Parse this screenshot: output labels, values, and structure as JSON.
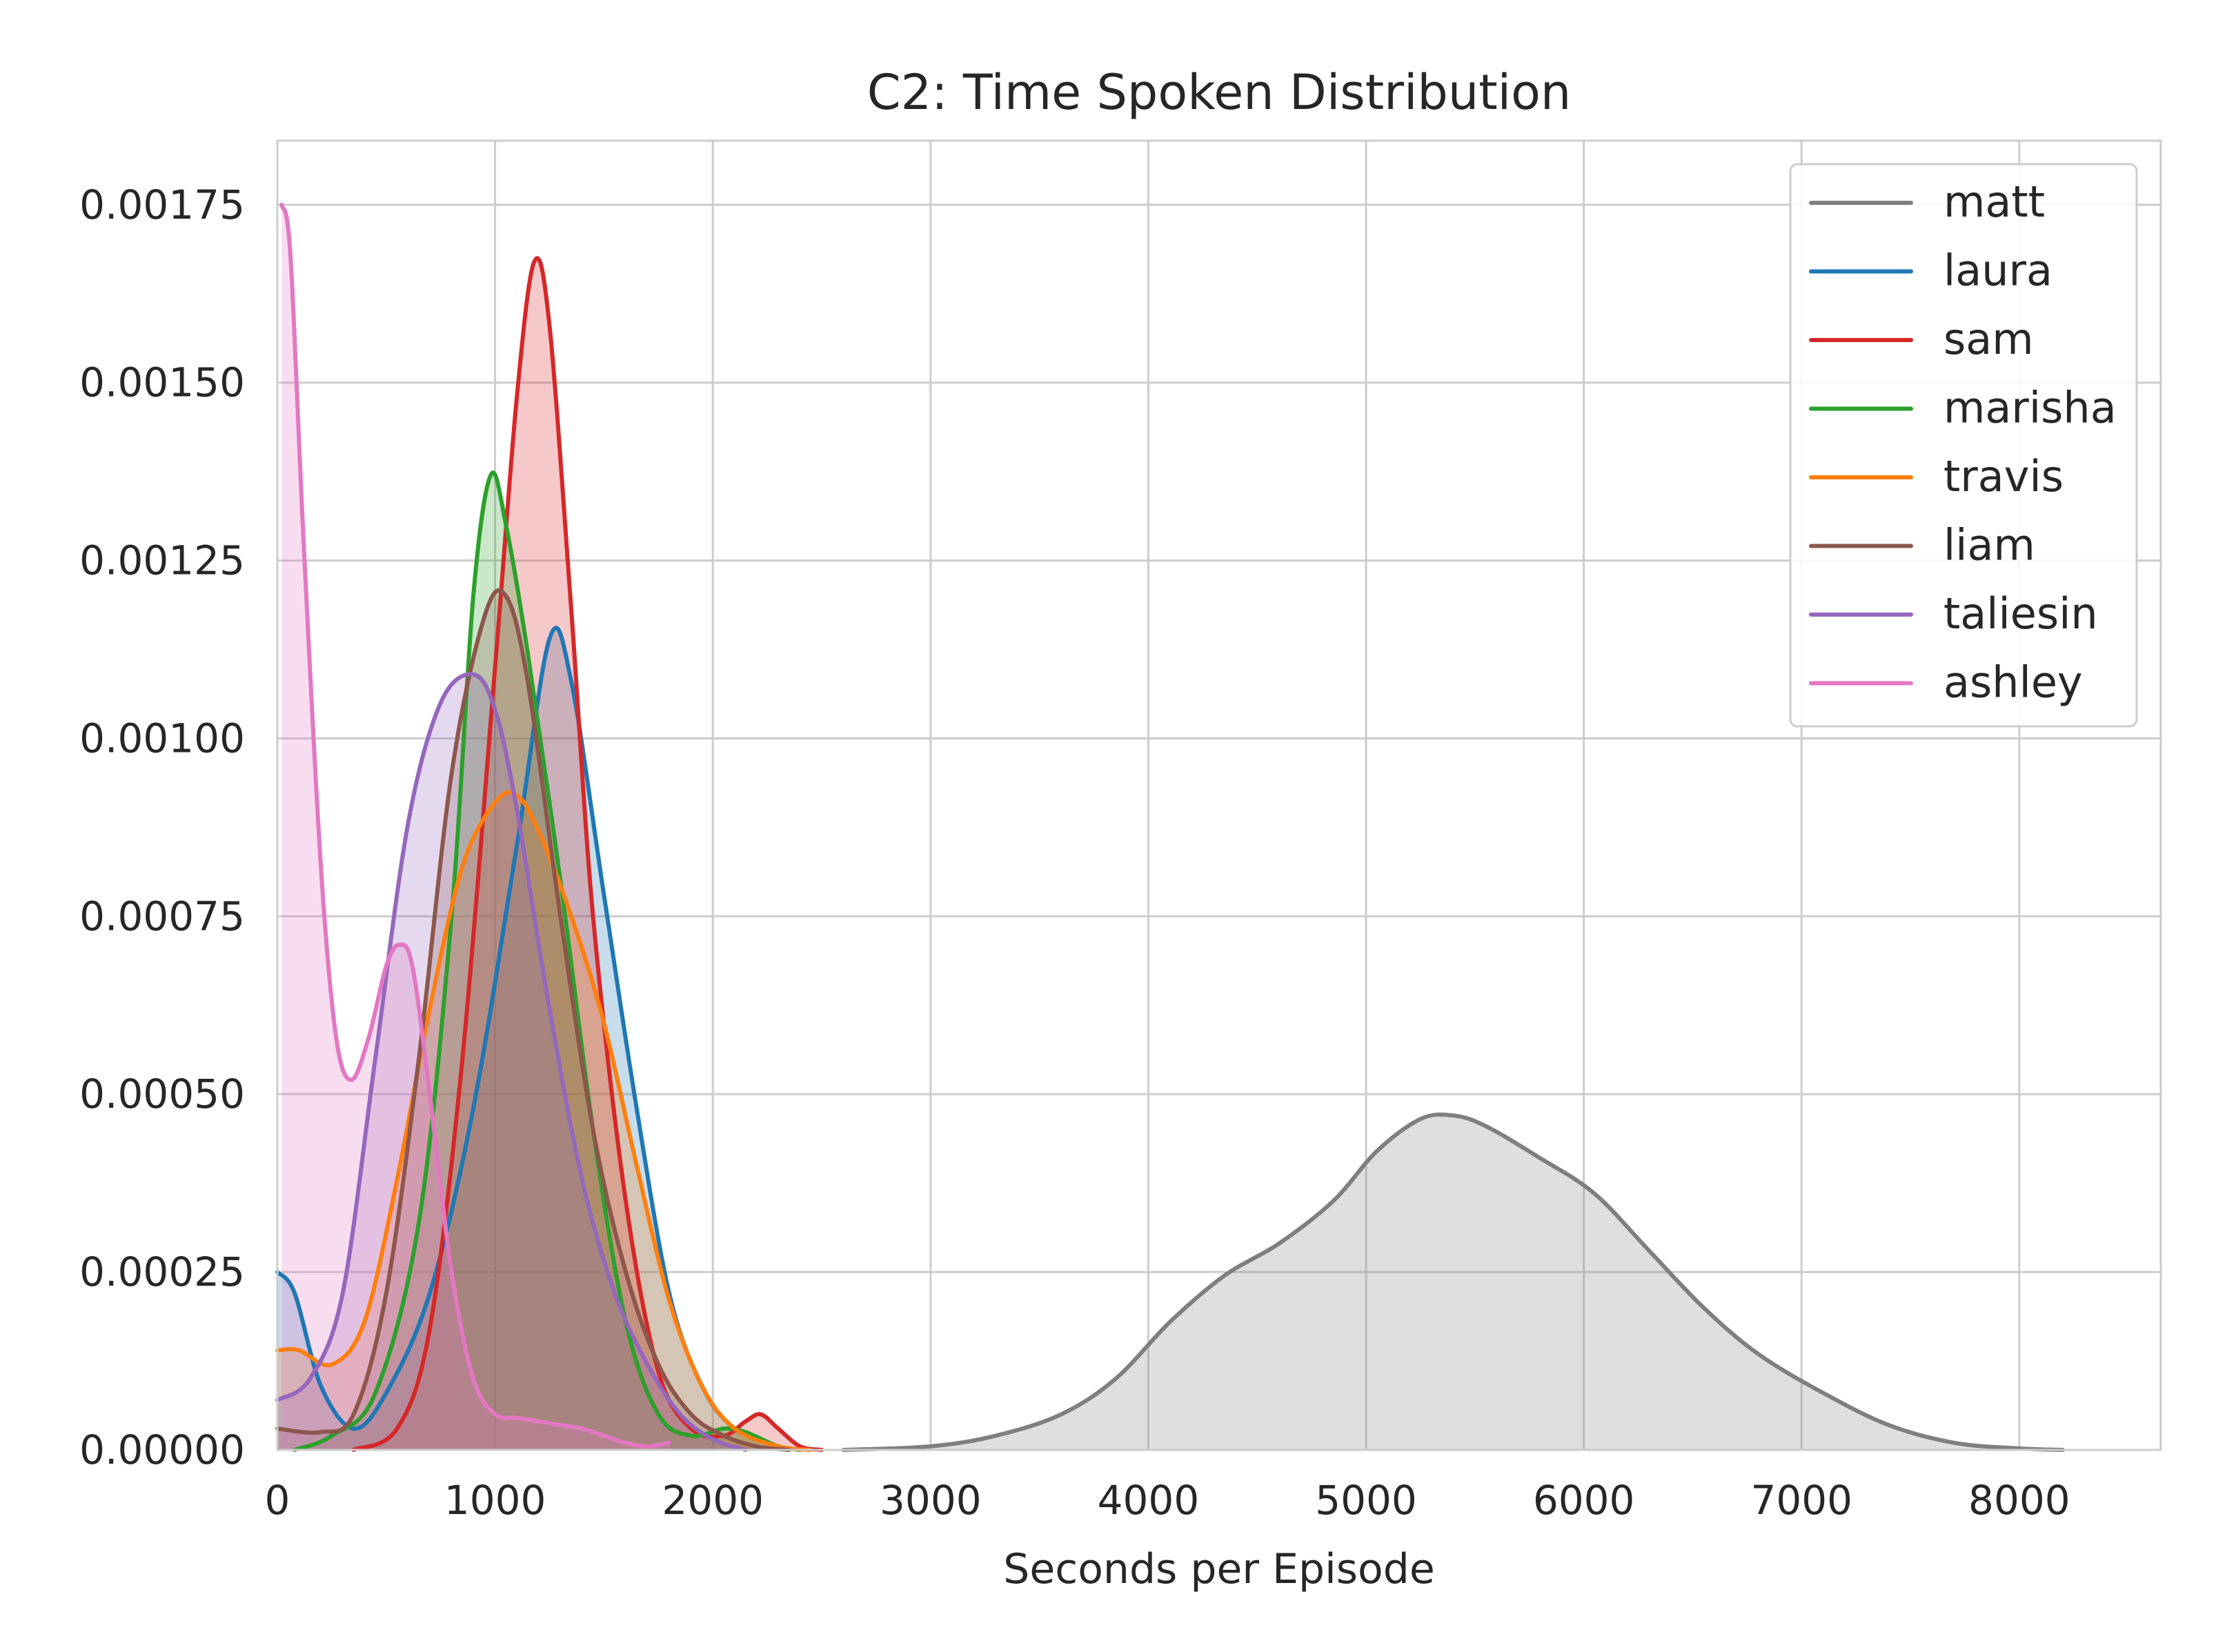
{
  "chart_data": {
    "type": "area",
    "title": "C2: Time Spoken Distribution",
    "xlabel": "Seconds per Episode",
    "ylabel": "",
    "xlim": [
      0,
      8650
    ],
    "ylim": [
      0,
      0.00184
    ],
    "x_ticks": [
      0,
      1000,
      2000,
      3000,
      4000,
      5000,
      6000,
      7000,
      8000
    ],
    "x_tick_labels": [
      "0",
      "1000",
      "2000",
      "3000",
      "4000",
      "5000",
      "6000",
      "7000",
      "8000"
    ],
    "y_ticks": [
      0,
      0.00025,
      0.0005,
      0.00075,
      0.001,
      0.00125,
      0.0015,
      0.00175
    ],
    "y_tick_labels": [
      "0.00000",
      "0.00025",
      "0.00050",
      "0.00075",
      "0.00100",
      "0.00125",
      "0.00150",
      "0.00175"
    ],
    "grid": true,
    "legend_position": "top-right",
    "series": [
      {
        "name": "matt",
        "color": "#7f7f7f",
        "points": [
          [
            2600,
            0
          ],
          [
            3000,
            5e-06
          ],
          [
            3300,
            2e-05
          ],
          [
            3600,
            5e-05
          ],
          [
            3850,
            0.0001
          ],
          [
            4100,
            0.00018
          ],
          [
            4350,
            0.000245
          ],
          [
            4600,
            0.00029
          ],
          [
            4850,
            0.00035
          ],
          [
            5050,
            0.00042
          ],
          [
            5250,
            0.000465
          ],
          [
            5400,
            0.00047
          ],
          [
            5550,
            0.000455
          ],
          [
            5800,
            0.00041
          ],
          [
            6050,
            0.00036
          ],
          [
            6300,
            0.00028
          ],
          [
            6550,
            0.0002
          ],
          [
            6800,
            0.000135
          ],
          [
            7100,
            8e-05
          ],
          [
            7400,
            3.5e-05
          ],
          [
            7700,
            1e-05
          ],
          [
            8000,
            2e-06
          ],
          [
            8200,
            0
          ]
        ]
      },
      {
        "name": "laura",
        "color": "#1f77b4",
        "points": [
          [
            0,
            0.00025
          ],
          [
            80,
            0.00022
          ],
          [
            200,
            9e-05
          ],
          [
            350,
            3e-05
          ],
          [
            500,
            8e-05
          ],
          [
            700,
            0.00022
          ],
          [
            900,
            0.00048
          ],
          [
            1100,
            0.00085
          ],
          [
            1250,
            0.00114
          ],
          [
            1350,
            0.00108
          ],
          [
            1500,
            0.00078
          ],
          [
            1650,
            0.00048
          ],
          [
            1800,
            0.00022
          ],
          [
            1950,
            9e-05
          ],
          [
            2100,
            3e-05
          ],
          [
            2300,
            5e-06
          ],
          [
            2450,
            0
          ]
        ]
      },
      {
        "name": "sam",
        "color": "#d62728",
        "points": [
          [
            350,
            0
          ],
          [
            550,
            3e-05
          ],
          [
            700,
            0.00017
          ],
          [
            850,
            0.00055
          ],
          [
            1000,
            0.0011
          ],
          [
            1100,
            0.00148
          ],
          [
            1180,
            0.00167
          ],
          [
            1250,
            0.00158
          ],
          [
            1350,
            0.00118
          ],
          [
            1450,
            0.00075
          ],
          [
            1600,
            0.00035
          ],
          [
            1750,
            0.00011
          ],
          [
            1900,
            3e-05
          ],
          [
            2050,
            2e-05
          ],
          [
            2150,
            4e-05
          ],
          [
            2220,
            5e-05
          ],
          [
            2300,
            3e-05
          ],
          [
            2400,
            5e-06
          ],
          [
            2500,
            0
          ]
        ]
      },
      {
        "name": "marisha",
        "color": "#2ca02c",
        "points": [
          [
            80,
            0
          ],
          [
            250,
            2e-05
          ],
          [
            450,
            8e-05
          ],
          [
            650,
            0.00032
          ],
          [
            800,
            0.00075
          ],
          [
            900,
            0.0012
          ],
          [
            980,
            0.00137
          ],
          [
            1050,
            0.0013
          ],
          [
            1150,
            0.00112
          ],
          [
            1300,
            0.0008
          ],
          [
            1450,
            0.00045
          ],
          [
            1600,
            0.00018
          ],
          [
            1750,
            5e-05
          ],
          [
            1900,
            2e-05
          ],
          [
            2050,
            3e-05
          ],
          [
            2150,
            2.5e-05
          ],
          [
            2300,
            5e-06
          ],
          [
            2400,
            0
          ]
        ]
      },
      {
        "name": "travis",
        "color": "#ff7f0e",
        "points": [
          [
            0,
            0.00014
          ],
          [
            100,
            0.00014
          ],
          [
            250,
            0.00012
          ],
          [
            400,
            0.00018
          ],
          [
            550,
            0.00038
          ],
          [
            700,
            0.00062
          ],
          [
            850,
            0.00082
          ],
          [
            1000,
            0.00091
          ],
          [
            1100,
            0.00092
          ],
          [
            1200,
            0.00087
          ],
          [
            1350,
            0.00075
          ],
          [
            1500,
            0.0006
          ],
          [
            1650,
            0.0004
          ],
          [
            1800,
            0.00021
          ],
          [
            1950,
            9e-05
          ],
          [
            2100,
            3e-05
          ],
          [
            2300,
            5e-06
          ],
          [
            2450,
            0
          ]
        ]
      },
      {
        "name": "liam",
        "color": "#8c564b",
        "points": [
          [
            0,
            3e-05
          ],
          [
            200,
            2.5e-05
          ],
          [
            350,
            5e-05
          ],
          [
            500,
            0.00022
          ],
          [
            650,
            0.00055
          ],
          [
            800,
            0.00095
          ],
          [
            950,
            0.00117
          ],
          [
            1050,
            0.0012
          ],
          [
            1150,
            0.00108
          ],
          [
            1300,
            0.00075
          ],
          [
            1450,
            0.00045
          ],
          [
            1600,
            0.00025
          ],
          [
            1750,
            0.00012
          ],
          [
            1900,
            5e-05
          ],
          [
            2050,
            2e-05
          ],
          [
            2200,
            5e-06
          ],
          [
            2350,
            0
          ]
        ]
      },
      {
        "name": "taliesin",
        "color": "#9467bd",
        "points": [
          [
            0,
            7e-05
          ],
          [
            150,
            0.0001
          ],
          [
            300,
            0.00022
          ],
          [
            450,
            0.00055
          ],
          [
            600,
            0.00088
          ],
          [
            750,
            0.00105
          ],
          [
            900,
            0.00109
          ],
          [
            1000,
            0.00104
          ],
          [
            1100,
            0.0009
          ],
          [
            1250,
            0.00062
          ],
          [
            1400,
            0.00038
          ],
          [
            1550,
            0.00022
          ],
          [
            1700,
            0.00012
          ],
          [
            1850,
            5e-05
          ],
          [
            2000,
            1.5e-05
          ],
          [
            2150,
            0
          ]
        ]
      },
      {
        "name": "ashley",
        "color": "#e377c2",
        "points": [
          [
            20,
            0.00175
          ],
          [
            60,
            0.00168
          ],
          [
            120,
            0.00128
          ],
          [
            200,
            0.00082
          ],
          [
            270,
            0.00058
          ],
          [
            340,
            0.00052
          ],
          [
            420,
            0.00058
          ],
          [
            500,
            0.00068
          ],
          [
            560,
            0.00071
          ],
          [
            620,
            0.00068
          ],
          [
            700,
            0.0005
          ],
          [
            800,
            0.00025
          ],
          [
            900,
            0.0001
          ],
          [
            1000,
            5e-05
          ],
          [
            1100,
            4.5e-05
          ],
          [
            1200,
            4e-05
          ],
          [
            1300,
            3.5e-05
          ],
          [
            1400,
            3e-05
          ],
          [
            1500,
            2e-05
          ],
          [
            1600,
            1e-05
          ],
          [
            1700,
            5e-06
          ],
          [
            1800,
            1e-05
          ]
        ]
      }
    ]
  }
}
